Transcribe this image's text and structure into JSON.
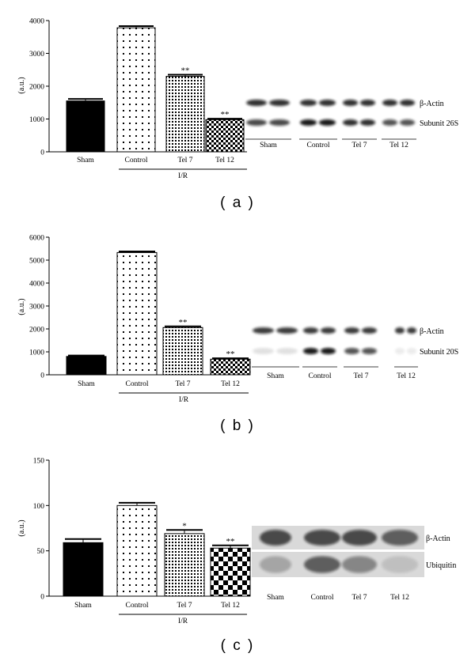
{
  "chart_data": [
    {
      "type": "bar",
      "panel_label": "( a )",
      "categories": [
        "Sham",
        "Control",
        "Tel 7",
        "Tel 12"
      ],
      "values": [
        1550,
        3780,
        2300,
        980
      ],
      "errors": [
        60,
        50,
        50,
        30
      ],
      "significance": [
        "",
        "",
        "**",
        "**"
      ],
      "patterns": [
        "solid",
        "sparse-dots",
        "dense-dots",
        "fine-checker"
      ],
      "ylabel": "(a.u.)",
      "ylim": [
        0,
        4000
      ],
      "yticks": [
        0,
        1000,
        2000,
        3000,
        4000
      ],
      "group_label": "I/R",
      "blot": {
        "rows": [
          "β-Actin",
          "Subunit 26S"
        ],
        "lanes": [
          "Sham",
          "Control",
          "Tel 7",
          "Tel 12"
        ]
      }
    },
    {
      "type": "bar",
      "panel_label": "( b )",
      "categories": [
        "Sham",
        "Control",
        "Tel 7",
        "Tel 12"
      ],
      "values": [
        800,
        5330,
        2060,
        680
      ],
      "errors": [
        40,
        50,
        50,
        40
      ],
      "significance": [
        "",
        "",
        "**",
        "**"
      ],
      "patterns": [
        "solid",
        "sparse-dots",
        "dense-dots",
        "fine-checker"
      ],
      "ylabel": "(a.u.)",
      "ylim": [
        0,
        6000
      ],
      "yticks": [
        0,
        1000,
        2000,
        3000,
        4000,
        5000,
        6000
      ],
      "group_label": "I/R",
      "blot": {
        "rows": [
          "β-Actin",
          "Subunit 20S"
        ],
        "lanes": [
          "Sham",
          "Control",
          "Tel 7",
          "Tel 12"
        ]
      }
    },
    {
      "type": "bar",
      "panel_label": "( c )",
      "categories": [
        "Sham",
        "Control",
        "Tel 7",
        "Tel 12"
      ],
      "values": [
        59,
        100,
        69,
        53
      ],
      "errors": [
        4,
        3,
        4,
        3
      ],
      "significance": [
        "",
        "",
        "*",
        "**"
      ],
      "patterns": [
        "solid",
        "sparse-dots",
        "dense-dots",
        "coarse-checker"
      ],
      "ylabel": "(a.u.)",
      "ylim": [
        0,
        150
      ],
      "yticks": [
        0,
        50,
        100,
        150
      ],
      "group_label": "I/R",
      "blot": {
        "rows": [
          "β-Actin",
          "Ubiquitin"
        ],
        "lanes": [
          "Sham",
          "Control",
          "Tel 7",
          "Tel 12"
        ]
      }
    }
  ]
}
